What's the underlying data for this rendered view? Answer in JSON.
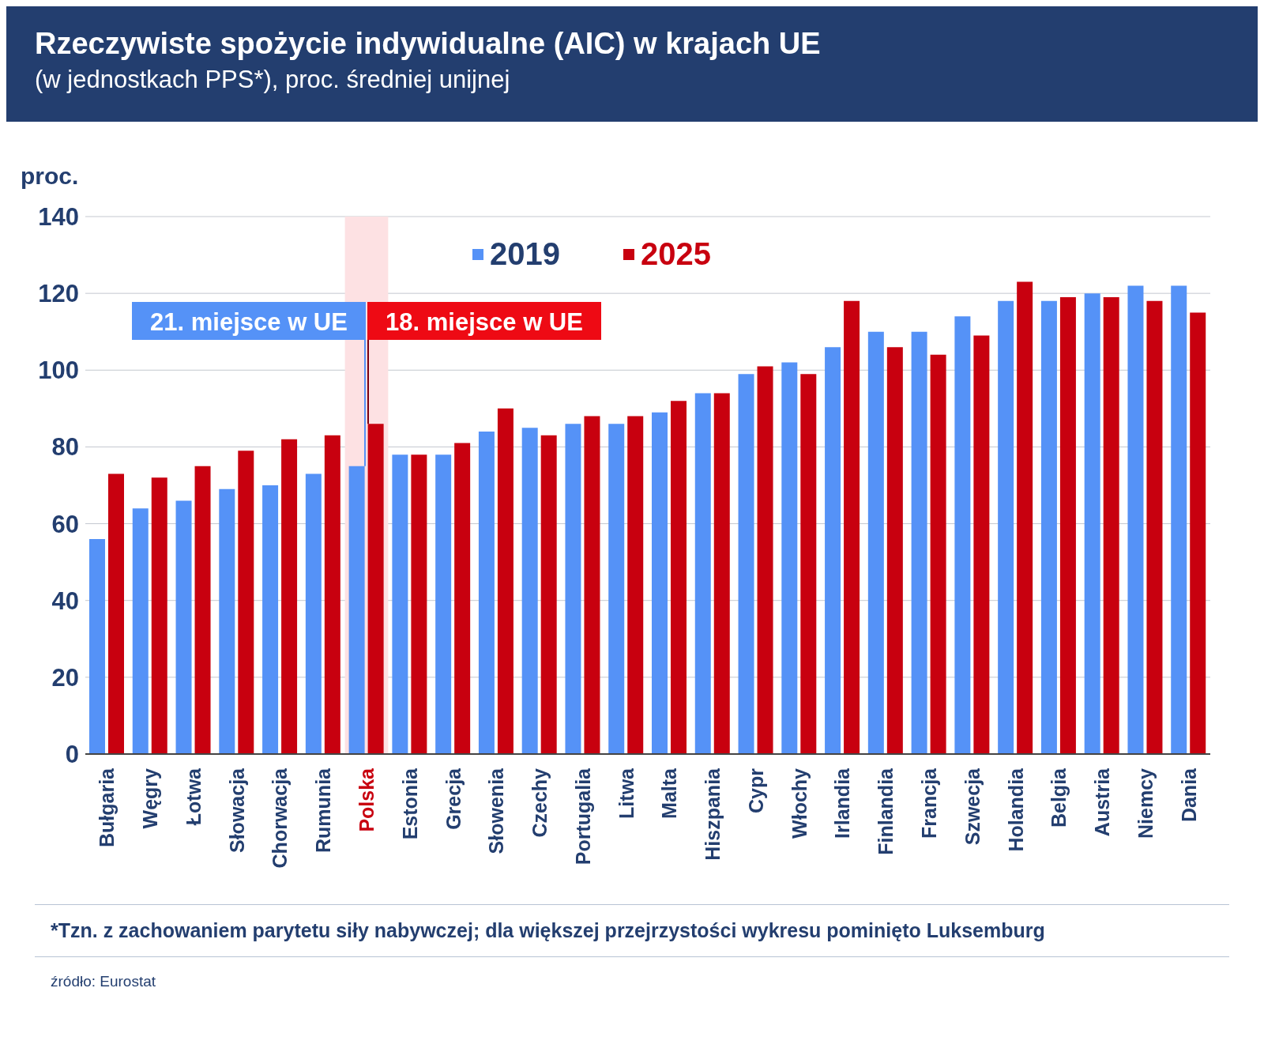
{
  "chart_data": {
    "type": "bar",
    "title": "Rzeczywiste spożycie indywidualne (AIC) w krajach UE",
    "subtitle": "(w jednostkach PPS*), proc. średniej unijnej",
    "ylabel": "proc.",
    "categories": [
      "Bułgaria",
      "Węgry",
      "Łotwa",
      "Słowacja",
      "Chorwacja",
      "Rumunia",
      "Polska",
      "Estonia",
      "Grecja",
      "Słowenia",
      "Czechy",
      "Portugalia",
      "Litwa",
      "Malta",
      "Hiszpania",
      "Cypr",
      "Włochy",
      "Irlandia",
      "Finlandia",
      "Francja",
      "Szwecja",
      "Holandia",
      "Belgia",
      "Austria",
      "Niemcy",
      "Dania"
    ],
    "series": [
      {
        "name": "2019",
        "color": "#5592f7",
        "values": [
          56,
          64,
          66,
          69,
          70,
          73,
          75,
          78,
          78,
          84,
          85,
          86,
          86,
          89,
          94,
          99,
          102,
          106,
          110,
          110,
          114,
          118,
          118,
          120,
          122,
          122
        ]
      },
      {
        "name": "2025",
        "color": "#c8000f",
        "values": [
          73,
          72,
          75,
          79,
          82,
          83,
          86,
          78,
          81,
          90,
          83,
          88,
          88,
          92,
          94,
          101,
          99,
          118,
          106,
          104,
          109,
          123,
          119,
          119,
          118,
          115
        ]
      }
    ],
    "ylim": [
      0,
      140
    ],
    "yticks": [
      0,
      20,
      40,
      60,
      80,
      100,
      120,
      140
    ],
    "grid": "y",
    "legend": "top",
    "bands": [
      {
        "axis": "x",
        "from": "Polska",
        "to": "Polska",
        "color": "#fde1e3"
      }
    ],
    "annotations": [
      {
        "text": "21. miejsce w UE",
        "x": "Polska",
        "y": 75
      },
      {
        "text": "18. miejsce w UE",
        "x": "Polska",
        "y": 86
      },
      "*Tzn. z zachowaniem parytetu siły nabywczej; dla większej przejrzystości wykresu pominięto Luksemburg",
      "źródło: Eurostat"
    ]
  }
}
